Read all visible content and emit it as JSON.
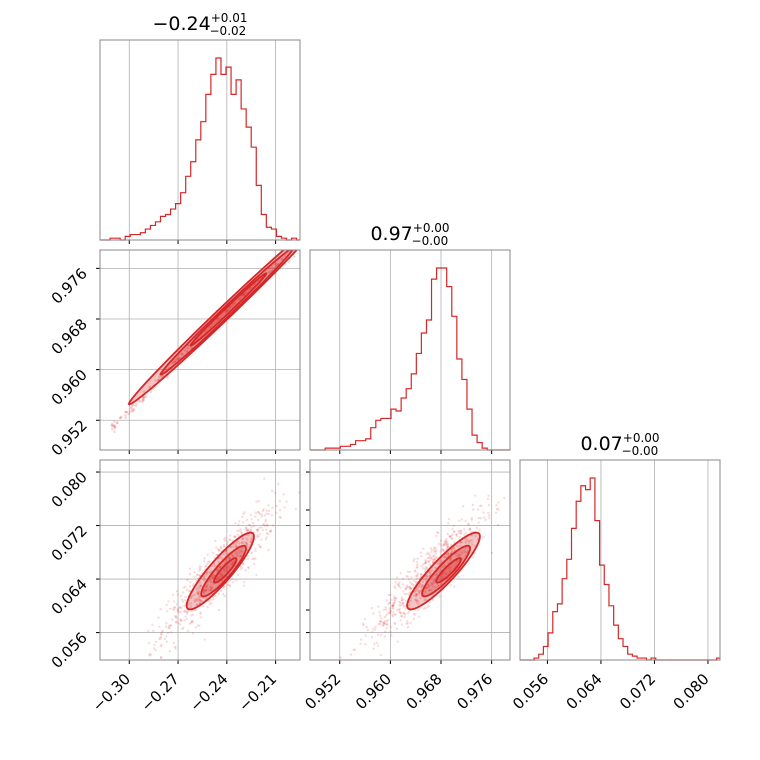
{
  "chart_data": {
    "type": "corner",
    "color": "#d62728",
    "parameters": [
      {
        "title": {
          "main": "−0.24",
          "sup": "+0.01",
          "sub": "−0.02"
        },
        "range": [
          -0.318,
          -0.195
        ],
        "ticks": [
          -0.3,
          -0.27,
          -0.24,
          -0.21
        ],
        "tick_labels": [
          "−0.30",
          "−0.27",
          "−0.24",
          "−0.21"
        ],
        "hist_bin_start": -0.318,
        "hist_bin_width": 0.0031,
        "hist_counts": [
          0,
          0,
          1,
          1,
          0,
          2,
          3,
          3,
          4,
          6,
          8,
          10,
          13,
          14,
          17,
          20,
          26,
          35,
          43,
          55,
          65,
          80,
          91,
          100,
          91,
          95,
          80,
          88,
          72,
          62,
          51,
          30,
          14,
          7,
          6,
          2,
          1,
          0,
          1,
          0,
          0
        ]
      },
      {
        "title": {
          "main": "0.97",
          "sup": "+0.00",
          "sub": "−0.00"
        },
        "range": [
          0.9473,
          0.9789
        ],
        "ticks": [
          0.952,
          0.96,
          0.968,
          0.976
        ],
        "tick_labels": [
          "0.952",
          "0.960",
          "0.968",
          "0.976"
        ],
        "hist_bin_start": 0.9473,
        "hist_bin_width": 0.0008,
        "hist_counts": [
          0,
          0,
          0,
          1,
          1,
          1,
          2,
          2,
          3,
          5,
          5,
          6,
          12,
          16,
          17,
          17,
          22,
          21,
          28,
          33,
          41,
          52,
          63,
          70,
          92,
          98,
          98,
          88,
          72,
          49,
          38,
          22,
          8,
          4,
          1,
          0,
          0,
          0,
          0,
          0
        ]
      },
      {
        "title": {
          "main": "0.07",
          "sup": "+0.00",
          "sub": "−0.00"
        },
        "range": [
          0.0519,
          0.0818
        ],
        "ticks": [
          0.056,
          0.064,
          0.072,
          0.08
        ],
        "tick_labels": [
          "0.056",
          "0.064",
          "0.072",
          "0.080"
        ],
        "hist_bin_start": 0.0519,
        "hist_bin_width": 0.0007,
        "hist_counts": [
          0,
          0,
          0,
          1,
          3,
          7,
          14,
          25,
          29,
          42,
          52,
          68,
          82,
          90,
          88,
          94,
          72,
          49,
          39,
          28,
          18,
          11,
          7,
          3,
          2,
          1,
          1,
          0,
          1,
          0,
          0,
          0,
          0,
          0,
          0,
          0,
          0,
          0,
          0,
          0,
          0,
          0,
          1
        ]
      }
    ],
    "pairs": [
      {
        "x": 0,
        "y": 1,
        "cloud": {
          "points": [
            [
              -0.311,
              0.9508
            ],
            [
              -0.306,
              0.9521
            ],
            [
              -0.301,
              0.9532
            ],
            [
              -0.294,
              0.955
            ],
            [
              -0.288,
              0.9567
            ],
            [
              -0.282,
              0.9584
            ],
            [
              -0.276,
              0.9601
            ],
            [
              -0.27,
              0.9618
            ],
            [
              -0.264,
              0.9634
            ],
            [
              -0.258,
              0.965
            ],
            [
              -0.252,
              0.9666
            ],
            [
              -0.246,
              0.9681
            ],
            [
              -0.24,
              0.9696
            ],
            [
              -0.234,
              0.9711
            ],
            [
              -0.228,
              0.9724
            ],
            [
              -0.222,
              0.9737
            ],
            [
              -0.216,
              0.975
            ],
            [
              -0.21,
              0.9762
            ],
            [
              -0.204,
              0.9774
            ],
            [
              -0.198,
              0.9784
            ]
          ],
          "spread_perp": 0.0004
        },
        "contours": [
          {
            "center": [
              -0.239,
              0.9695
            ],
            "semi_major_u": 0.024,
            "semi_minor_u": 0.0006,
            "filled": true
          },
          {
            "center": [
              -0.24,
              0.9692
            ],
            "semi_major_u": 0.042,
            "semi_minor_u": 0.001,
            "filled": false
          },
          {
            "center": [
              -0.242,
              0.9688
            ],
            "semi_major_u": 0.06,
            "semi_minor_u": 0.0014,
            "filled": false
          }
        ]
      },
      {
        "x": 0,
        "y": 2,
        "cloud": {
          "center": [
            -0.245,
            0.065
          ],
          "sx": 0.017,
          "sy": 0.0047,
          "rho": 0.9,
          "n": 700
        },
        "contours": [
          {
            "center": [
              -0.241,
              0.0653
            ],
            "sx": 0.006,
            "sy": 0.0016,
            "rho": 0.9,
            "filled": true
          },
          {
            "center": [
              -0.242,
              0.0652
            ],
            "sx": 0.012,
            "sy": 0.0033,
            "rho": 0.9,
            "filled": false
          },
          {
            "center": [
              -0.244,
              0.0652
            ],
            "sx": 0.018,
            "sy": 0.005,
            "rho": 0.9,
            "filled": false
          }
        ]
      },
      {
        "x": 1,
        "y": 2,
        "cloud": {
          "center": [
            0.9665,
            0.065
          ],
          "sx": 0.0046,
          "sy": 0.0047,
          "rho": 0.9,
          "n": 700
        },
        "contours": [
          {
            "center": [
              0.9692,
              0.0653
            ],
            "sx": 0.0017,
            "sy": 0.0016,
            "rho": 0.9,
            "filled": true
          },
          {
            "center": [
              0.9688,
              0.0652
            ],
            "sx": 0.0033,
            "sy": 0.0033,
            "rho": 0.9,
            "filled": false
          },
          {
            "center": [
              0.9684,
              0.0652
            ],
            "sx": 0.005,
            "sy": 0.005,
            "rho": 0.9,
            "filled": false
          }
        ]
      }
    ],
    "grid": true
  }
}
